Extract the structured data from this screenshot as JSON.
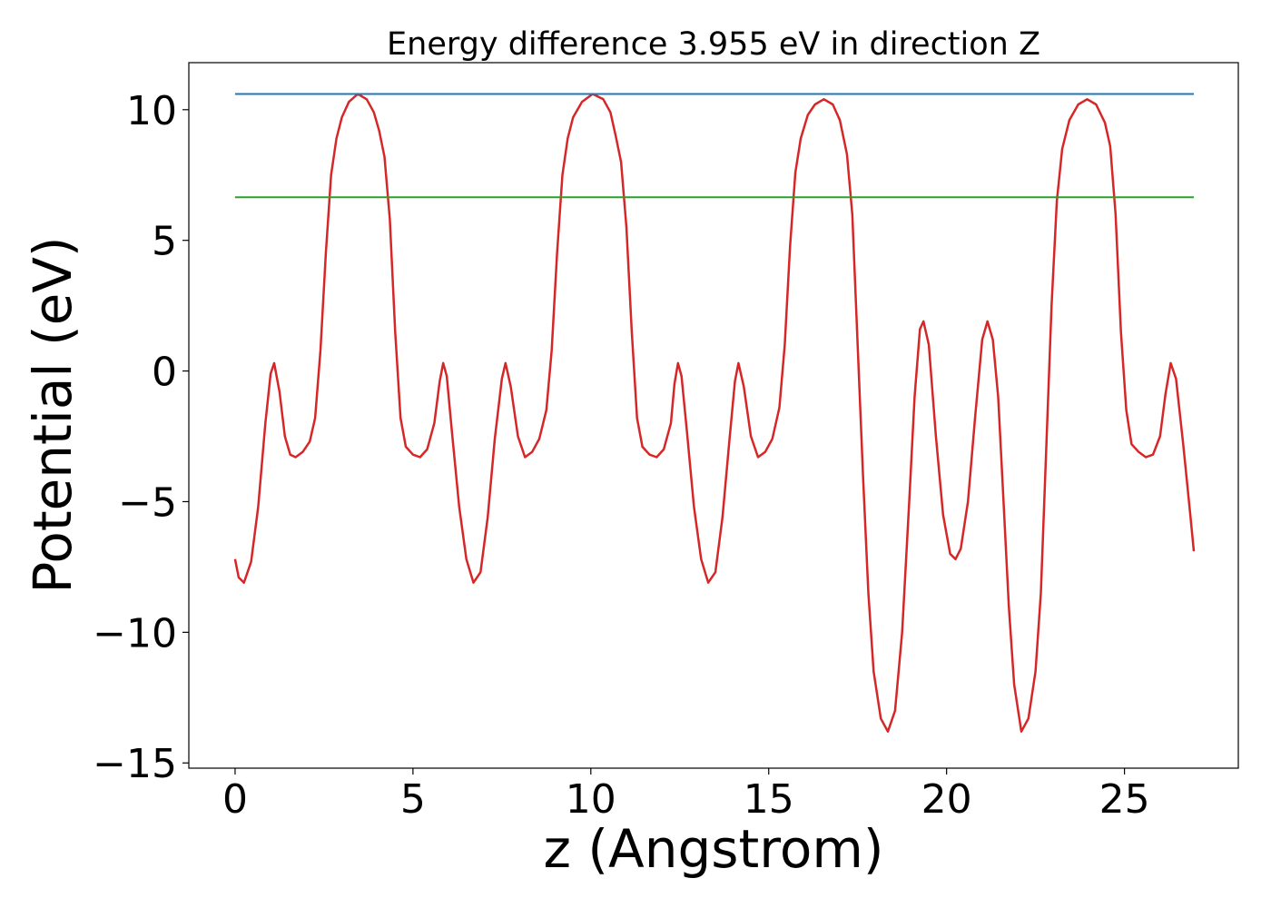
{
  "chart_data": {
    "type": "line",
    "title": "Energy difference 3.955 eV in direction Z",
    "xlabel": "z (Angstrom)",
    "ylabel": "Potential (eV)",
    "xlim": [
      -1.3,
      28.2
    ],
    "ylim": [
      -15.2,
      11.8
    ],
    "xticks": [
      0,
      5,
      10,
      15,
      20,
      25
    ],
    "xtick_labels": [
      "0",
      "5",
      "10",
      "15",
      "20",
      "25"
    ],
    "yticks": [
      -15,
      -10,
      -5,
      0,
      5,
      10
    ],
    "ytick_labels": [
      "−15",
      "−10",
      "−5",
      "0",
      "5",
      "10"
    ],
    "grid": false,
    "legend": "none",
    "series": [
      {
        "color": "#d62728",
        "points": [
          [
            0.0,
            -7.2
          ],
          [
            0.1,
            -7.9
          ],
          [
            0.25,
            -8.1
          ],
          [
            0.45,
            -7.3
          ],
          [
            0.65,
            -5.2
          ],
          [
            0.85,
            -2.0
          ],
          [
            1.0,
            -0.1
          ],
          [
            1.1,
            0.3
          ],
          [
            1.25,
            -0.8
          ],
          [
            1.4,
            -2.5
          ],
          [
            1.55,
            -3.2
          ],
          [
            1.7,
            -3.3
          ],
          [
            1.9,
            -3.1
          ],
          [
            2.1,
            -2.7
          ],
          [
            2.25,
            -1.8
          ],
          [
            2.4,
            0.8
          ],
          [
            2.55,
            4.5
          ],
          [
            2.7,
            7.5
          ],
          [
            2.85,
            8.9
          ],
          [
            3.0,
            9.7
          ],
          [
            3.2,
            10.3
          ],
          [
            3.45,
            10.6
          ],
          [
            3.7,
            10.4
          ],
          [
            3.9,
            9.9
          ],
          [
            4.05,
            9.2
          ],
          [
            4.2,
            8.2
          ],
          [
            4.35,
            5.8
          ],
          [
            4.5,
            1.5
          ],
          [
            4.65,
            -1.8
          ],
          [
            4.8,
            -2.9
          ],
          [
            5.0,
            -3.2
          ],
          [
            5.2,
            -3.3
          ],
          [
            5.4,
            -3.0
          ],
          [
            5.6,
            -2.0
          ],
          [
            5.75,
            -0.4
          ],
          [
            5.85,
            0.3
          ],
          [
            5.95,
            -0.2
          ],
          [
            6.1,
            -2.4
          ],
          [
            6.3,
            -5.2
          ],
          [
            6.5,
            -7.2
          ],
          [
            6.7,
            -8.1
          ],
          [
            6.9,
            -7.7
          ],
          [
            7.1,
            -5.6
          ],
          [
            7.3,
            -2.6
          ],
          [
            7.5,
            -0.3
          ],
          [
            7.6,
            0.3
          ],
          [
            7.75,
            -0.6
          ],
          [
            7.95,
            -2.5
          ],
          [
            8.15,
            -3.3
          ],
          [
            8.35,
            -3.1
          ],
          [
            8.55,
            -2.6
          ],
          [
            8.75,
            -1.5
          ],
          [
            8.9,
            0.8
          ],
          [
            9.05,
            4.5
          ],
          [
            9.2,
            7.5
          ],
          [
            9.35,
            8.9
          ],
          [
            9.5,
            9.7
          ],
          [
            9.75,
            10.3
          ],
          [
            10.05,
            10.6
          ],
          [
            10.35,
            10.4
          ],
          [
            10.55,
            9.9
          ],
          [
            10.7,
            9.0
          ],
          [
            10.85,
            8.0
          ],
          [
            11.0,
            5.5
          ],
          [
            11.15,
            1.5
          ],
          [
            11.3,
            -1.8
          ],
          [
            11.45,
            -2.9
          ],
          [
            11.65,
            -3.2
          ],
          [
            11.85,
            -3.3
          ],
          [
            12.05,
            -3.0
          ],
          [
            12.25,
            -2.0
          ],
          [
            12.35,
            -0.5
          ],
          [
            12.45,
            0.3
          ],
          [
            12.55,
            -0.2
          ],
          [
            12.7,
            -2.3
          ],
          [
            12.9,
            -5.2
          ],
          [
            13.1,
            -7.2
          ],
          [
            13.3,
            -8.1
          ],
          [
            13.5,
            -7.7
          ],
          [
            13.7,
            -5.6
          ],
          [
            13.9,
            -2.6
          ],
          [
            14.05,
            -0.4
          ],
          [
            14.15,
            0.3
          ],
          [
            14.3,
            -0.6
          ],
          [
            14.5,
            -2.5
          ],
          [
            14.7,
            -3.3
          ],
          [
            14.9,
            -3.1
          ],
          [
            15.1,
            -2.6
          ],
          [
            15.3,
            -1.4
          ],
          [
            15.45,
            1.0
          ],
          [
            15.6,
            4.8
          ],
          [
            15.75,
            7.6
          ],
          [
            15.9,
            8.9
          ],
          [
            16.1,
            9.8
          ],
          [
            16.3,
            10.2
          ],
          [
            16.55,
            10.4
          ],
          [
            16.8,
            10.2
          ],
          [
            17.0,
            9.6
          ],
          [
            17.2,
            8.3
          ],
          [
            17.35,
            6.0
          ],
          [
            17.5,
            1.0
          ],
          [
            17.65,
            -4.0
          ],
          [
            17.8,
            -8.5
          ],
          [
            17.95,
            -11.5
          ],
          [
            18.15,
            -13.3
          ],
          [
            18.35,
            -13.8
          ],
          [
            18.55,
            -13.0
          ],
          [
            18.75,
            -10.0
          ],
          [
            18.95,
            -5.0
          ],
          [
            19.1,
            -1.0
          ],
          [
            19.25,
            1.6
          ],
          [
            19.35,
            1.9
          ],
          [
            19.5,
            1.0
          ],
          [
            19.7,
            -2.5
          ],
          [
            19.9,
            -5.5
          ],
          [
            20.1,
            -7.0
          ],
          [
            20.25,
            -7.2
          ],
          [
            20.4,
            -6.8
          ],
          [
            20.6,
            -5.0
          ],
          [
            20.8,
            -1.8
          ],
          [
            21.0,
            1.2
          ],
          [
            21.15,
            1.9
          ],
          [
            21.3,
            1.2
          ],
          [
            21.45,
            -1.0
          ],
          [
            21.6,
            -5.0
          ],
          [
            21.75,
            -9.0
          ],
          [
            21.9,
            -12.0
          ],
          [
            22.1,
            -13.8
          ],
          [
            22.3,
            -13.3
          ],
          [
            22.5,
            -11.5
          ],
          [
            22.65,
            -8.5
          ],
          [
            22.8,
            -3.0
          ],
          [
            22.95,
            2.5
          ],
          [
            23.1,
            6.5
          ],
          [
            23.25,
            8.5
          ],
          [
            23.45,
            9.6
          ],
          [
            23.7,
            10.2
          ],
          [
            23.95,
            10.4
          ],
          [
            24.2,
            10.2
          ],
          [
            24.45,
            9.5
          ],
          [
            24.6,
            8.6
          ],
          [
            24.75,
            6.0
          ],
          [
            24.9,
            1.5
          ],
          [
            25.05,
            -1.5
          ],
          [
            25.2,
            -2.8
          ],
          [
            25.4,
            -3.1
          ],
          [
            25.6,
            -3.3
          ],
          [
            25.8,
            -3.2
          ],
          [
            26.0,
            -2.5
          ],
          [
            26.15,
            -0.9
          ],
          [
            26.3,
            0.3
          ],
          [
            26.45,
            -0.3
          ],
          [
            26.65,
            -2.8
          ],
          [
            26.85,
            -5.5
          ],
          [
            26.95,
            -6.9
          ]
        ]
      },
      {
        "color": "#1f77b4",
        "points": [
          [
            0.0,
            10.6
          ],
          [
            26.95,
            10.6
          ]
        ]
      },
      {
        "color": "#2ca02c",
        "points": [
          [
            0.0,
            6.65
          ],
          [
            26.95,
            6.65
          ]
        ]
      }
    ]
  }
}
